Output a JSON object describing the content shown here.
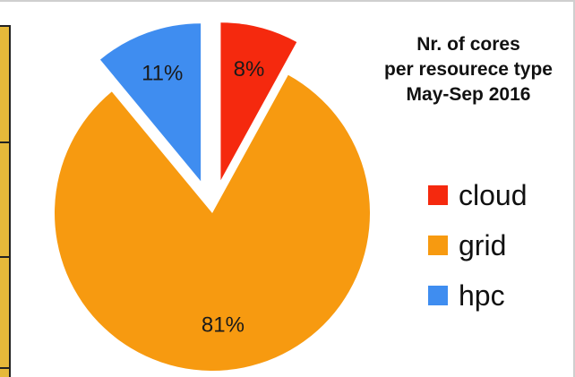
{
  "chart_data": {
    "type": "pie",
    "title_lines": [
      "Nr. of cores",
      "per resourece type",
      "May-Sep 2016"
    ],
    "slices": [
      {
        "label": "cloud",
        "value": 8,
        "display": "8%",
        "color": "#f5290e",
        "exploded": true
      },
      {
        "label": "grid",
        "value": 81,
        "display": "81%",
        "color": "#f79a10",
        "exploded": false
      },
      {
        "label": "hpc",
        "value": 11,
        "display": "11%",
        "color": "#3f8df0",
        "exploded": true
      }
    ],
    "legend_position": "right"
  }
}
